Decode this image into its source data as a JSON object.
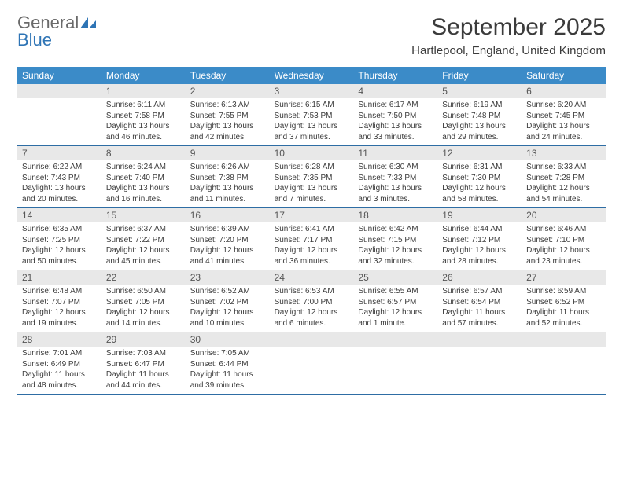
{
  "logo": {
    "line1": "General",
    "line2": "Blue"
  },
  "title": "September 2025",
  "location": "Hartlepool, England, United Kingdom",
  "header_bg": "#3b8bc8",
  "daynum_bg": "#e8e8e8",
  "border_color": "#2e6da4",
  "weekdays": [
    "Sunday",
    "Monday",
    "Tuesday",
    "Wednesday",
    "Thursday",
    "Friday",
    "Saturday"
  ],
  "weeks": [
    [
      null,
      {
        "n": "1",
        "sunrise": "6:11 AM",
        "sunset": "7:58 PM",
        "daylight": "13 hours and 46 minutes."
      },
      {
        "n": "2",
        "sunrise": "6:13 AM",
        "sunset": "7:55 PM",
        "daylight": "13 hours and 42 minutes."
      },
      {
        "n": "3",
        "sunrise": "6:15 AM",
        "sunset": "7:53 PM",
        "daylight": "13 hours and 37 minutes."
      },
      {
        "n": "4",
        "sunrise": "6:17 AM",
        "sunset": "7:50 PM",
        "daylight": "13 hours and 33 minutes."
      },
      {
        "n": "5",
        "sunrise": "6:19 AM",
        "sunset": "7:48 PM",
        "daylight": "13 hours and 29 minutes."
      },
      {
        "n": "6",
        "sunrise": "6:20 AM",
        "sunset": "7:45 PM",
        "daylight": "13 hours and 24 minutes."
      }
    ],
    [
      {
        "n": "7",
        "sunrise": "6:22 AM",
        "sunset": "7:43 PM",
        "daylight": "13 hours and 20 minutes."
      },
      {
        "n": "8",
        "sunrise": "6:24 AM",
        "sunset": "7:40 PM",
        "daylight": "13 hours and 16 minutes."
      },
      {
        "n": "9",
        "sunrise": "6:26 AM",
        "sunset": "7:38 PM",
        "daylight": "13 hours and 11 minutes."
      },
      {
        "n": "10",
        "sunrise": "6:28 AM",
        "sunset": "7:35 PM",
        "daylight": "13 hours and 7 minutes."
      },
      {
        "n": "11",
        "sunrise": "6:30 AM",
        "sunset": "7:33 PM",
        "daylight": "13 hours and 3 minutes."
      },
      {
        "n": "12",
        "sunrise": "6:31 AM",
        "sunset": "7:30 PM",
        "daylight": "12 hours and 58 minutes."
      },
      {
        "n": "13",
        "sunrise": "6:33 AM",
        "sunset": "7:28 PM",
        "daylight": "12 hours and 54 minutes."
      }
    ],
    [
      {
        "n": "14",
        "sunrise": "6:35 AM",
        "sunset": "7:25 PM",
        "daylight": "12 hours and 50 minutes."
      },
      {
        "n": "15",
        "sunrise": "6:37 AM",
        "sunset": "7:22 PM",
        "daylight": "12 hours and 45 minutes."
      },
      {
        "n": "16",
        "sunrise": "6:39 AM",
        "sunset": "7:20 PM",
        "daylight": "12 hours and 41 minutes."
      },
      {
        "n": "17",
        "sunrise": "6:41 AM",
        "sunset": "7:17 PM",
        "daylight": "12 hours and 36 minutes."
      },
      {
        "n": "18",
        "sunrise": "6:42 AM",
        "sunset": "7:15 PM",
        "daylight": "12 hours and 32 minutes."
      },
      {
        "n": "19",
        "sunrise": "6:44 AM",
        "sunset": "7:12 PM",
        "daylight": "12 hours and 28 minutes."
      },
      {
        "n": "20",
        "sunrise": "6:46 AM",
        "sunset": "7:10 PM",
        "daylight": "12 hours and 23 minutes."
      }
    ],
    [
      {
        "n": "21",
        "sunrise": "6:48 AM",
        "sunset": "7:07 PM",
        "daylight": "12 hours and 19 minutes."
      },
      {
        "n": "22",
        "sunrise": "6:50 AM",
        "sunset": "7:05 PM",
        "daylight": "12 hours and 14 minutes."
      },
      {
        "n": "23",
        "sunrise": "6:52 AM",
        "sunset": "7:02 PM",
        "daylight": "12 hours and 10 minutes."
      },
      {
        "n": "24",
        "sunrise": "6:53 AM",
        "sunset": "7:00 PM",
        "daylight": "12 hours and 6 minutes."
      },
      {
        "n": "25",
        "sunrise": "6:55 AM",
        "sunset": "6:57 PM",
        "daylight": "12 hours and 1 minute."
      },
      {
        "n": "26",
        "sunrise": "6:57 AM",
        "sunset": "6:54 PM",
        "daylight": "11 hours and 57 minutes."
      },
      {
        "n": "27",
        "sunrise": "6:59 AM",
        "sunset": "6:52 PM",
        "daylight": "11 hours and 52 minutes."
      }
    ],
    [
      {
        "n": "28",
        "sunrise": "7:01 AM",
        "sunset": "6:49 PM",
        "daylight": "11 hours and 48 minutes."
      },
      {
        "n": "29",
        "sunrise": "7:03 AM",
        "sunset": "6:47 PM",
        "daylight": "11 hours and 44 minutes."
      },
      {
        "n": "30",
        "sunrise": "7:05 AM",
        "sunset": "6:44 PM",
        "daylight": "11 hours and 39 minutes."
      },
      null,
      null,
      null,
      null
    ]
  ],
  "labels": {
    "sunrise": "Sunrise:",
    "sunset": "Sunset:",
    "daylight": "Daylight:"
  }
}
